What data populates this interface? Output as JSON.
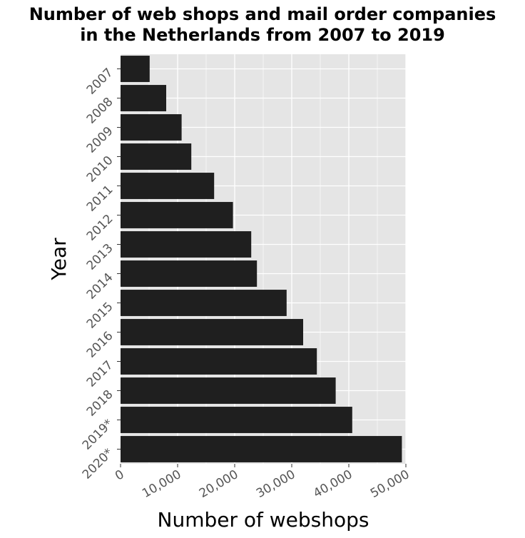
{
  "chart_data": {
    "type": "bar",
    "orientation": "horizontal",
    "title_lines": [
      "Number of web shops and mail order companies",
      "in the Netherlands from 2007 to 2019"
    ],
    "xlabel": "Number of webshops",
    "ylabel": "Year",
    "categories": [
      "2007",
      "2008",
      "2009",
      "2010",
      "2011",
      "2012",
      "2013",
      "2014",
      "2015",
      "2016",
      "2017",
      "2018",
      "2019*",
      "2020*"
    ],
    "values": [
      5100,
      8000,
      10700,
      12400,
      16400,
      19700,
      22900,
      23900,
      29100,
      32000,
      34400,
      37700,
      40600,
      49300
    ],
    "xlim": [
      0,
      50000
    ],
    "xticks": [
      0,
      10000,
      20000,
      30000,
      40000,
      50000
    ],
    "xtick_labels": [
      "0",
      "10,000",
      "20,000",
      "30,000",
      "40,000",
      "50,000"
    ],
    "grid": true,
    "bar_color": "#1f1f1f",
    "panel_color": "#e5e5e5",
    "grid_color": "#ffffff"
  }
}
